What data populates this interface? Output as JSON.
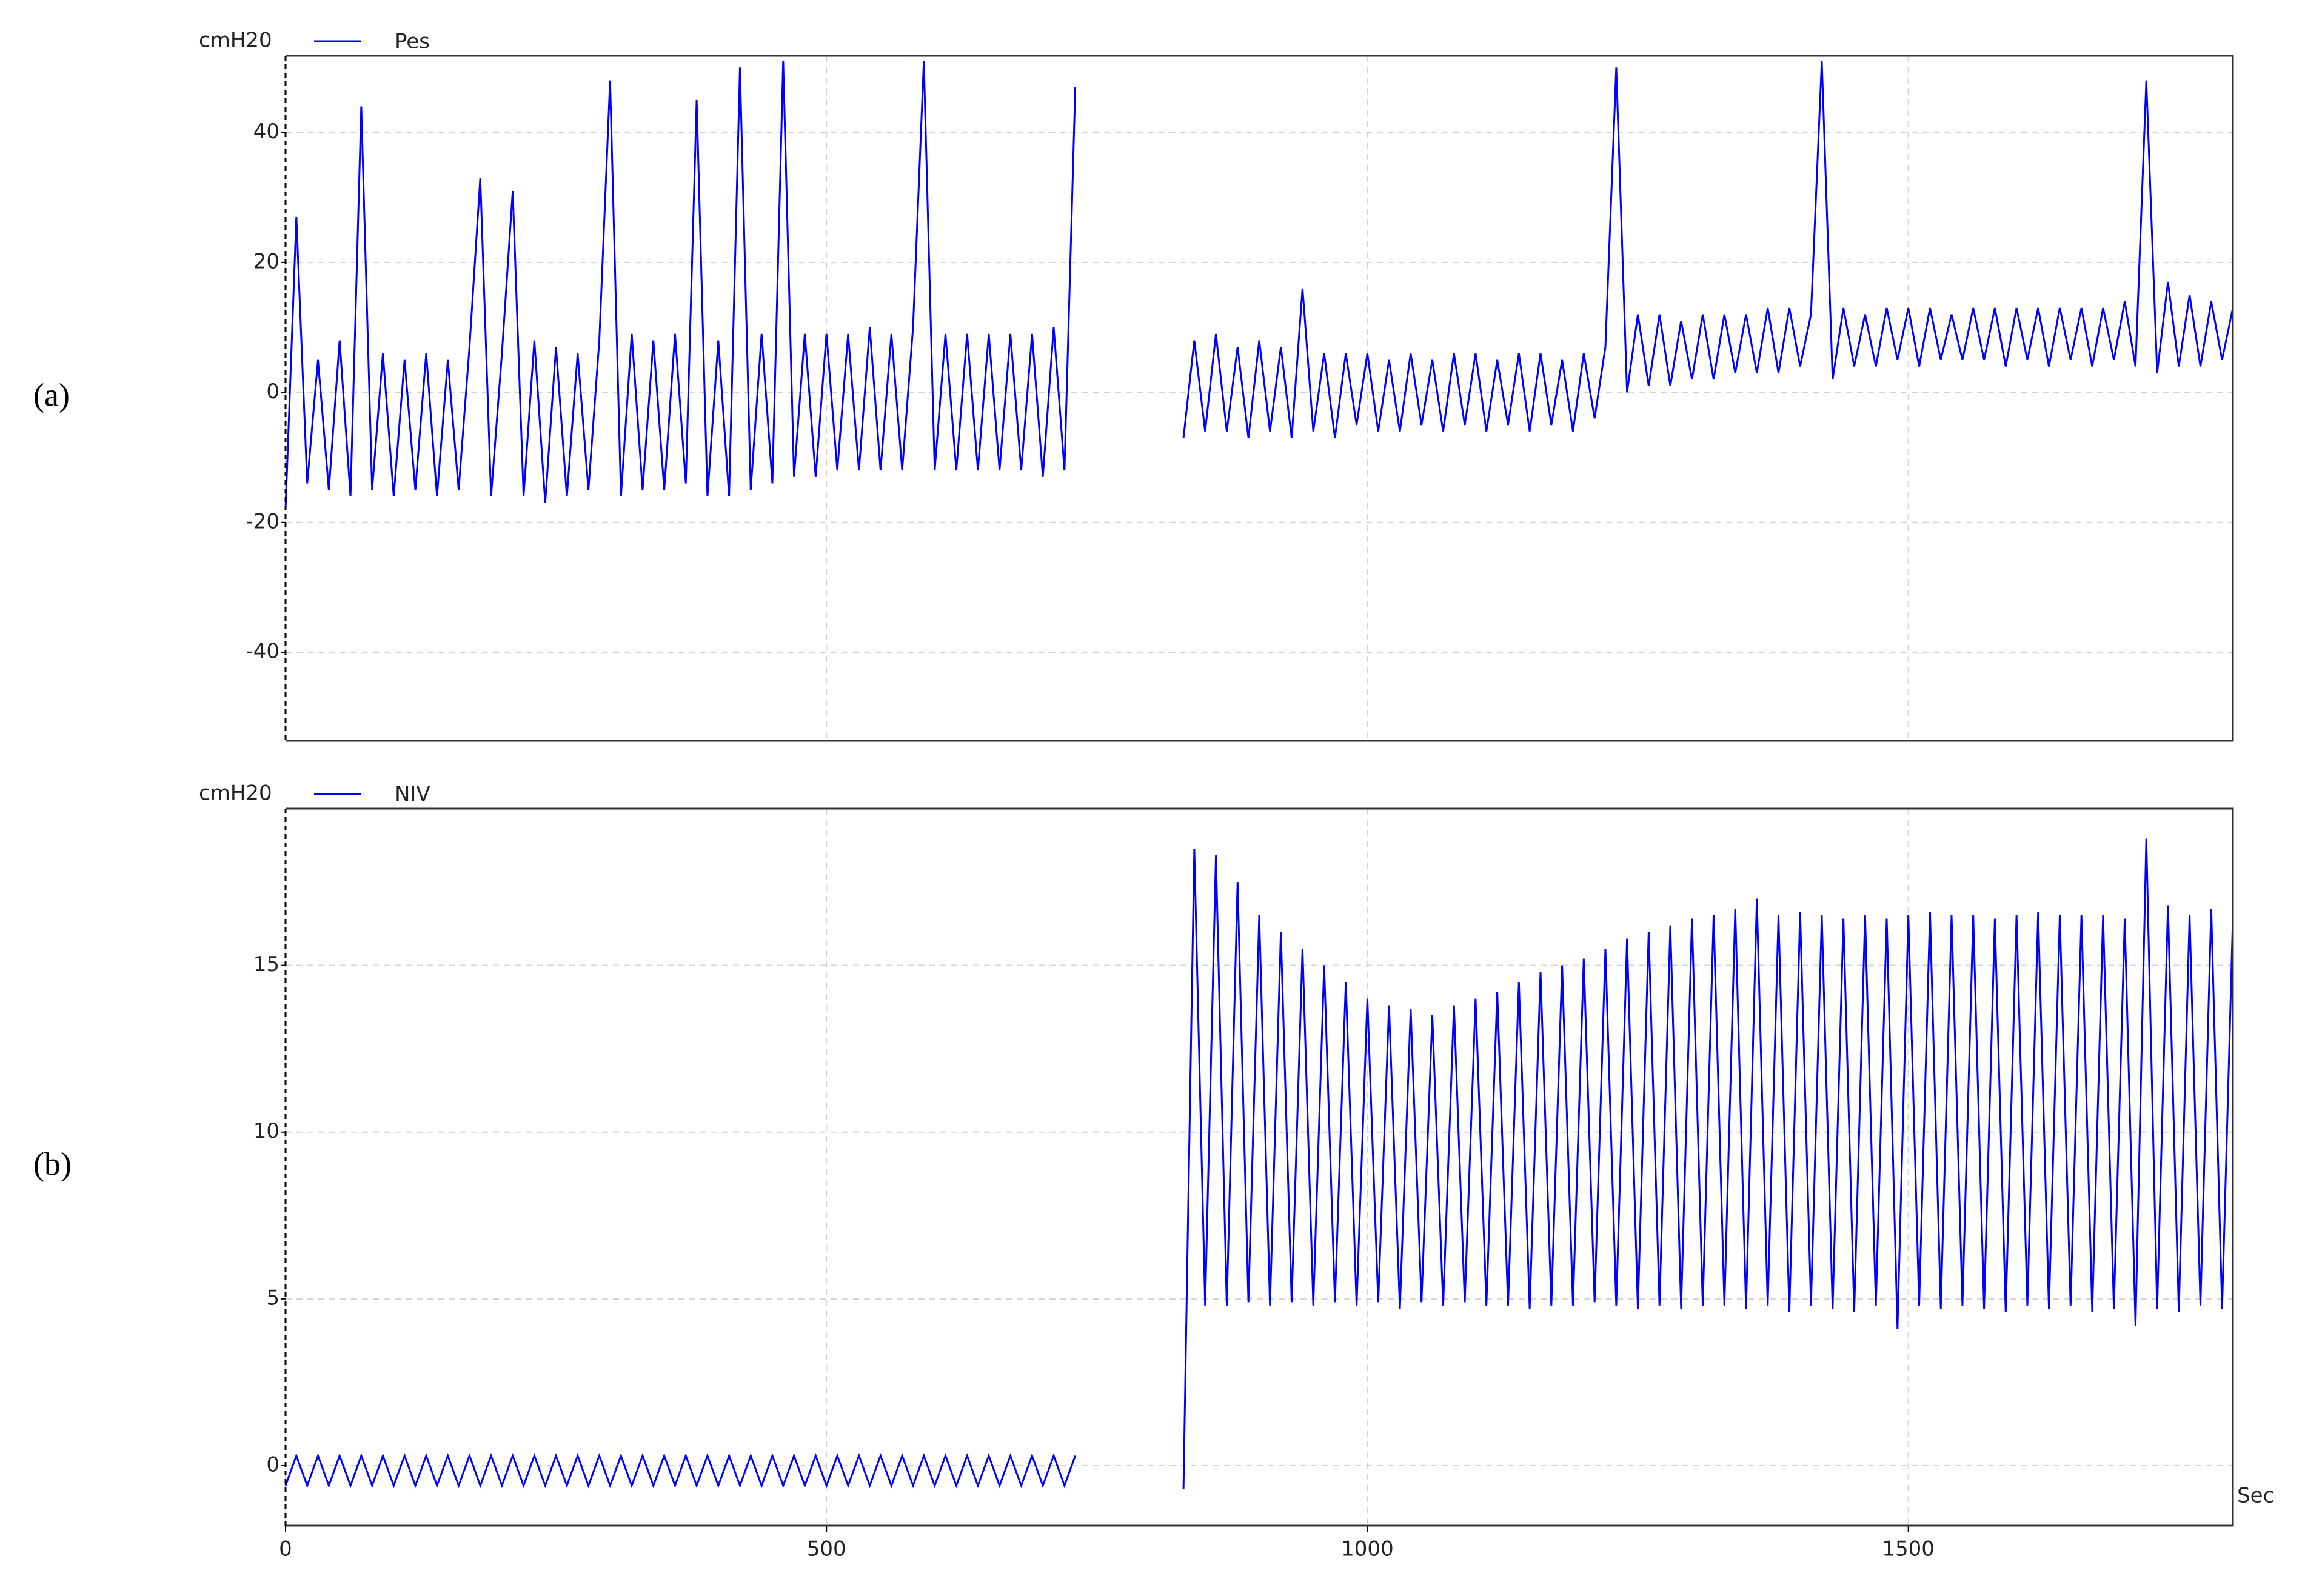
{
  "chart_data": [
    {
      "type": "line",
      "panel_label": "(a)",
      "y_label": "cmH20",
      "x": [
        0,
        10,
        20,
        30,
        40,
        50,
        60,
        70,
        80,
        90,
        100,
        110,
        120,
        130,
        140,
        150,
        160,
        170,
        180,
        190,
        200,
        210,
        220,
        230,
        240,
        250,
        260,
        270,
        280,
        290,
        300,
        310,
        320,
        330,
        340,
        350,
        360,
        370,
        380,
        390,
        400,
        410,
        420,
        430,
        440,
        450,
        460,
        470,
        480,
        490,
        500,
        510,
        520,
        530,
        540,
        550,
        560,
        570,
        580,
        590,
        600,
        610,
        620,
        630,
        640,
        650,
        660,
        670,
        680,
        690,
        700,
        710,
        720,
        730,
        740,
        750,
        760,
        770,
        780,
        790,
        800,
        810,
        820,
        830,
        840,
        850,
        860,
        870,
        880,
        890,
        900,
        910,
        920,
        930,
        940,
        950,
        960,
        970,
        980,
        990,
        1000,
        1010,
        1020,
        1030,
        1040,
        1050,
        1060,
        1070,
        1080,
        1090,
        1100,
        1110,
        1120,
        1130,
        1140,
        1150,
        1160,
        1170,
        1180,
        1190,
        1200,
        1210,
        1220,
        1230,
        1240,
        1250,
        1260,
        1270,
        1280,
        1290,
        1300,
        1310,
        1320,
        1330,
        1340,
        1350,
        1360,
        1370,
        1380,
        1390,
        1400,
        1410,
        1420,
        1430,
        1440,
        1450,
        1460,
        1470,
        1480,
        1490,
        1500,
        1510,
        1520,
        1530,
        1540,
        1550,
        1560,
        1570,
        1580,
        1590,
        1600,
        1610,
        1620,
        1630,
        1640,
        1650,
        1660,
        1670,
        1680,
        1690,
        1700,
        1710,
        1720,
        1730,
        1740,
        1750,
        1760,
        1770,
        1780,
        1790,
        1800
      ],
      "series": [
        {
          "name": "Pes",
          "color": "#0000ff",
          "values": [
            -18,
            27,
            -14,
            5,
            -15,
            8,
            -16,
            44,
            -15,
            6,
            -16,
            5,
            -15,
            6,
            -16,
            5,
            -15,
            7,
            33,
            -16,
            6,
            31,
            -16,
            8,
            -17,
            7,
            -16,
            6,
            -15,
            8,
            48,
            -16,
            9,
            -15,
            8,
            -15,
            9,
            -14,
            45,
            -16,
            8,
            -16,
            50,
            -15,
            9,
            -14,
            51,
            -13,
            9,
            -13,
            9,
            -12,
            9,
            -12,
            10,
            -12,
            9,
            -12,
            10,
            51,
            -12,
            9,
            -12,
            9,
            -12,
            9,
            -12,
            9,
            -12,
            9,
            -13,
            10,
            -12,
            47,
            null,
            null,
            null,
            null,
            null,
            null,
            null,
            null,
            null,
            -7,
            8,
            -6,
            9,
            -6,
            7,
            -7,
            8,
            -6,
            7,
            -7,
            16,
            -6,
            6,
            -7,
            6,
            -5,
            6,
            -6,
            5,
            -6,
            6,
            -5,
            5,
            -6,
            6,
            -5,
            6,
            -6,
            5,
            -5,
            6,
            -6,
            6,
            -5,
            5,
            -6,
            6,
            -4,
            7,
            50,
            0,
            12,
            1,
            12,
            1,
            11,
            2,
            12,
            2,
            12,
            3,
            12,
            3,
            13,
            3,
            13,
            4,
            12,
            51,
            2,
            13,
            4,
            12,
            4,
            13,
            5,
            13,
            4,
            13,
            5,
            12,
            5,
            13,
            5,
            13,
            4,
            13,
            5,
            13,
            4,
            13,
            5,
            13,
            4,
            13,
            5,
            14,
            4,
            48,
            3,
            17,
            4,
            15,
            4,
            14,
            5,
            13
          ]
        }
      ],
      "xlim": [
        0,
        1800
      ],
      "xticks": [
        0,
        500,
        1000,
        1500
      ],
      "xtick_labels": false,
      "ylim": [
        -53.6,
        51.8
      ],
      "yticks": [
        -40,
        -20,
        0,
        20,
        40
      ],
      "grid": true
    },
    {
      "type": "line",
      "panel_label": "(b)",
      "y_label": "cmH20",
      "x_label": "Sec",
      "x": [
        0,
        10,
        20,
        30,
        40,
        50,
        60,
        70,
        80,
        90,
        100,
        110,
        120,
        130,
        140,
        150,
        160,
        170,
        180,
        190,
        200,
        210,
        220,
        230,
        240,
        250,
        260,
        270,
        280,
        290,
        300,
        310,
        320,
        330,
        340,
        350,
        360,
        370,
        380,
        390,
        400,
        410,
        420,
        430,
        440,
        450,
        460,
        470,
        480,
        490,
        500,
        510,
        520,
        530,
        540,
        550,
        560,
        570,
        580,
        590,
        600,
        610,
        620,
        630,
        640,
        650,
        660,
        670,
        680,
        690,
        700,
        710,
        720,
        730,
        740,
        750,
        760,
        770,
        780,
        790,
        800,
        810,
        820,
        830,
        840,
        850,
        860,
        870,
        880,
        890,
        900,
        910,
        920,
        930,
        940,
        950,
        960,
        970,
        980,
        990,
        1000,
        1010,
        1020,
        1030,
        1040,
        1050,
        1060,
        1070,
        1080,
        1090,
        1100,
        1110,
        1120,
        1130,
        1140,
        1150,
        1160,
        1170,
        1180,
        1190,
        1200,
        1210,
        1220,
        1230,
        1240,
        1250,
        1260,
        1270,
        1280,
        1290,
        1300,
        1310,
        1320,
        1330,
        1340,
        1350,
        1360,
        1370,
        1380,
        1390,
        1400,
        1410,
        1420,
        1430,
        1440,
        1450,
        1460,
        1470,
        1480,
        1490,
        1500,
        1510,
        1520,
        1530,
        1540,
        1550,
        1560,
        1570,
        1580,
        1590,
        1600,
        1610,
        1620,
        1630,
        1640,
        1650,
        1660,
        1670,
        1680,
        1690,
        1700,
        1710,
        1720,
        1730,
        1740,
        1750,
        1760,
        1770,
        1780,
        1790,
        1800
      ],
      "series": [
        {
          "name": "NIV",
          "color": "#0000ff",
          "values": [
            -0.6,
            0.3,
            -0.6,
            0.3,
            -0.6,
            0.3,
            -0.6,
            0.3,
            -0.6,
            0.3,
            -0.6,
            0.3,
            -0.6,
            0.3,
            -0.6,
            0.3,
            -0.6,
            0.3,
            -0.6,
            0.3,
            -0.6,
            0.3,
            -0.6,
            0.3,
            -0.6,
            0.3,
            -0.6,
            0.3,
            -0.6,
            0.3,
            -0.6,
            0.3,
            -0.6,
            0.3,
            -0.6,
            0.3,
            -0.6,
            0.3,
            -0.6,
            0.3,
            -0.6,
            0.3,
            -0.6,
            0.3,
            -0.6,
            0.3,
            -0.6,
            0.3,
            -0.6,
            0.3,
            -0.6,
            0.3,
            -0.6,
            0.3,
            -0.6,
            0.3,
            -0.6,
            0.3,
            -0.6,
            0.3,
            -0.6,
            0.3,
            -0.6,
            0.3,
            -0.6,
            0.3,
            -0.6,
            0.3,
            -0.6,
            0.3,
            -0.6,
            0.3,
            -0.6,
            0.3,
            null,
            null,
            null,
            null,
            null,
            null,
            null,
            null,
            null,
            -0.7,
            18.5,
            4.8,
            18.3,
            4.8,
            17.5,
            4.9,
            16.5,
            4.8,
            16,
            4.9,
            15.5,
            4.8,
            15,
            4.9,
            14.5,
            4.8,
            14,
            4.9,
            13.8,
            4.7,
            13.7,
            4.9,
            13.5,
            4.8,
            13.8,
            4.9,
            14,
            4.8,
            14.2,
            4.8,
            14.5,
            4.7,
            14.8,
            4.8,
            15,
            4.8,
            15.2,
            4.9,
            15.5,
            4.8,
            15.8,
            4.7,
            16,
            4.8,
            16.2,
            4.7,
            16.4,
            4.8,
            16.5,
            4.8,
            16.7,
            4.7,
            17,
            4.8,
            16.5,
            4.6,
            16.6,
            4.8,
            16.5,
            4.7,
            16.4,
            4.6,
            16.5,
            4.8,
            16.4,
            4.1,
            16.5,
            4.8,
            16.6,
            4.7,
            16.5,
            4.8,
            16.5,
            4.7,
            16.4,
            4.6,
            16.5,
            4.8,
            16.6,
            4.7,
            16.5,
            4.8,
            16.5,
            4.6,
            16.5,
            4.7,
            16.4,
            4.2,
            18.8,
            4.7,
            16.8,
            4.6,
            16.5,
            4.8,
            16.7,
            4.7,
            16.4
          ]
        }
      ],
      "xlim": [
        0,
        1800
      ],
      "xticks": [
        0,
        500,
        1000,
        1500
      ],
      "xtick_labels": true,
      "ylim": [
        -1.8,
        19.7
      ],
      "yticks": [
        0,
        5,
        10,
        15
      ],
      "grid": true
    }
  ]
}
